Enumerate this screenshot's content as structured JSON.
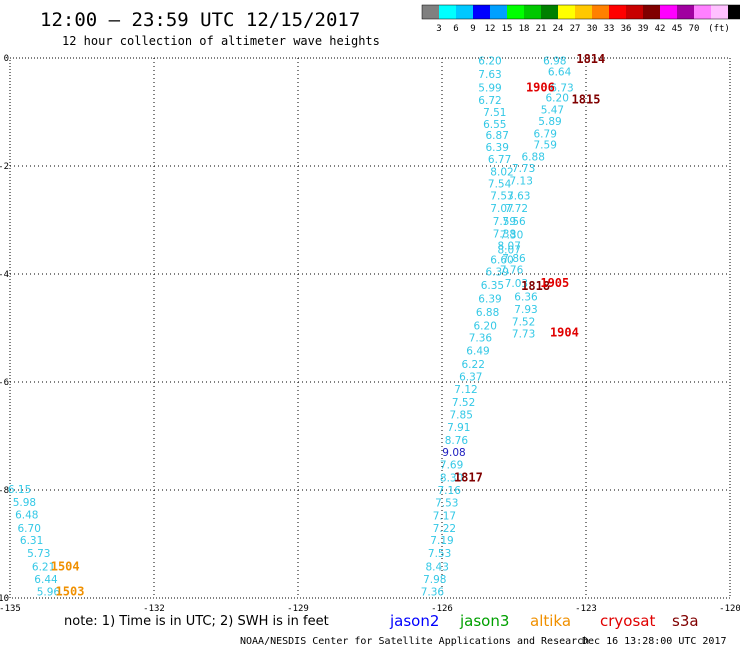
{
  "header": {
    "title": "12:00 – 23:59 UTC 12/15/2017",
    "subtitle": "12 hour collection of altimeter wave heights"
  },
  "legend": {
    "unit": "(ft)",
    "colors": [
      "#808080",
      "#00ffff",
      "#00c8ff",
      "#0000ff",
      "#00a0ff",
      "#00ff00",
      "#00c800",
      "#008000",
      "#ffff00",
      "#ffc800",
      "#ff8000",
      "#ff0000",
      "#c80000",
      "#800000",
      "#ff00ff",
      "#a000a0",
      "#ff80ff",
      "#ffc0ff",
      "#000000"
    ],
    "labels": [
      "3",
      "6",
      "9",
      "12",
      "15",
      "18",
      "21",
      "24",
      "27",
      "30",
      "33",
      "36",
      "39",
      "42",
      "45",
      "70"
    ]
  },
  "axes": {
    "x_ticks": [
      "-135",
      "-132",
      "-129",
      "-126",
      "-123",
      "-120"
    ],
    "y_ticks": [
      "0",
      "-2",
      "-4",
      "-6",
      "-8",
      "-10"
    ]
  },
  "chart_data": {
    "type": "scatter",
    "xlim": [
      -135,
      -120
    ],
    "ylim": [
      -10,
      0
    ],
    "grid": true,
    "wave_heights": [
      {
        "x": -125.0,
        "y": -0.05,
        "v": "6.20",
        "c": "#33c8e6"
      },
      {
        "x": -123.65,
        "y": -0.05,
        "v": "6.98",
        "c": "#33c8e6"
      },
      {
        "x": -123.55,
        "y": -0.25,
        "v": "6.64",
        "c": "#33c8e6"
      },
      {
        "x": -125.0,
        "y": -0.3,
        "v": "7.63",
        "c": "#33c8e6"
      },
      {
        "x": -125.0,
        "y": -0.55,
        "v": "5.99",
        "c": "#33c8e6"
      },
      {
        "x": -123.5,
        "y": -0.55,
        "v": "6.73",
        "c": "#33c8e6"
      },
      {
        "x": -125.0,
        "y": -0.78,
        "v": "6.72",
        "c": "#33c8e6"
      },
      {
        "x": -123.6,
        "y": -0.73,
        "v": "6.20",
        "c": "#33c8e6"
      },
      {
        "x": -124.9,
        "y": -1.0,
        "v": "7.51",
        "c": "#33c8e6"
      },
      {
        "x": -123.7,
        "y": -0.95,
        "v": "5.47",
        "c": "#33c8e6"
      },
      {
        "x": -124.9,
        "y": -1.22,
        "v": "6.55",
        "c": "#33c8e6"
      },
      {
        "x": -123.75,
        "y": -1.17,
        "v": "5.89",
        "c": "#33c8e6"
      },
      {
        "x": -124.85,
        "y": -1.43,
        "v": "6.87",
        "c": "#33c8e6"
      },
      {
        "x": -123.85,
        "y": -1.4,
        "v": "6.79",
        "c": "#33c8e6"
      },
      {
        "x": -124.85,
        "y": -1.65,
        "v": "6.39",
        "c": "#33c8e6"
      },
      {
        "x": -123.85,
        "y": -1.6,
        "v": "7.59",
        "c": "#33c8e6"
      },
      {
        "x": -124.8,
        "y": -1.87,
        "v": "6.77",
        "c": "#33c8e6"
      },
      {
        "x": -124.1,
        "y": -1.82,
        "v": "6.88",
        "c": "#33c8e6"
      },
      {
        "x": -124.75,
        "y": -2.1,
        "v": "8.02",
        "c": "#33c8e6"
      },
      {
        "x": -124.3,
        "y": -2.04,
        "v": "7.73",
        "c": "#33c8e6"
      },
      {
        "x": -124.8,
        "y": -2.32,
        "v": "7.54",
        "c": "#33c8e6"
      },
      {
        "x": -124.35,
        "y": -2.27,
        "v": "7.13",
        "c": "#33c8e6"
      },
      {
        "x": -124.75,
        "y": -2.55,
        "v": "7.53",
        "c": "#33c8e6"
      },
      {
        "x": -124.4,
        "y": -2.55,
        "v": "7.63",
        "c": "#33c8e6"
      },
      {
        "x": -124.75,
        "y": -2.78,
        "v": "7.07",
        "c": "#33c8e6"
      },
      {
        "x": -124.45,
        "y": -2.78,
        "v": "7.72",
        "c": "#33c8e6"
      },
      {
        "x": -124.7,
        "y": -3.02,
        "v": "7.59",
        "c": "#33c8e6"
      },
      {
        "x": -124.5,
        "y": -3.02,
        "v": "7.56",
        "c": "#33c8e6"
      },
      {
        "x": -124.7,
        "y": -3.25,
        "v": "7.38",
        "c": "#33c8e6"
      },
      {
        "x": -124.55,
        "y": -3.27,
        "v": "7.30",
        "c": "#33c8e6"
      },
      {
        "x": -124.6,
        "y": -3.47,
        "v": "8.07",
        "c": "#33c8e6"
      },
      {
        "x": -124.6,
        "y": -3.55,
        "v": "8.07",
        "c": "#33c8e6"
      },
      {
        "x": -124.75,
        "y": -3.73,
        "v": "6.60",
        "c": "#33c8e6"
      },
      {
        "x": -124.5,
        "y": -3.7,
        "v": "7.86",
        "c": "#33c8e6"
      },
      {
        "x": -124.85,
        "y": -3.95,
        "v": "6.39",
        "c": "#33c8e6"
      },
      {
        "x": -124.55,
        "y": -3.92,
        "v": "7.76",
        "c": "#33c8e6"
      },
      {
        "x": -124.95,
        "y": -4.2,
        "v": "6.35",
        "c": "#33c8e6"
      },
      {
        "x": -124.45,
        "y": -4.17,
        "v": "7.03",
        "c": "#33c8e6"
      },
      {
        "x": -125.0,
        "y": -4.45,
        "v": "6.39",
        "c": "#33c8e6"
      },
      {
        "x": -124.25,
        "y": -4.42,
        "v": "6.36",
        "c": "#33c8e6"
      },
      {
        "x": -125.05,
        "y": -4.7,
        "v": "6.88",
        "c": "#33c8e6"
      },
      {
        "x": -124.25,
        "y": -4.65,
        "v": "7.93",
        "c": "#33c8e6"
      },
      {
        "x": -125.1,
        "y": -4.95,
        "v": "6.20",
        "c": "#33c8e6"
      },
      {
        "x": -124.3,
        "y": -4.88,
        "v": "7.52",
        "c": "#33c8e6"
      },
      {
        "x": -125.2,
        "y": -5.18,
        "v": "7.36",
        "c": "#33c8e6"
      },
      {
        "x": -124.3,
        "y": -5.1,
        "v": "7.73",
        "c": "#33c8e6"
      },
      {
        "x": -125.25,
        "y": -5.42,
        "v": "6.49",
        "c": "#33c8e6"
      },
      {
        "x": -125.35,
        "y": -5.67,
        "v": "6.22",
        "c": "#33c8e6"
      },
      {
        "x": -125.4,
        "y": -5.9,
        "v": "6.37",
        "c": "#33c8e6"
      },
      {
        "x": -125.5,
        "y": -6.13,
        "v": "7.12",
        "c": "#33c8e6"
      },
      {
        "x": -125.55,
        "y": -6.37,
        "v": "7.52",
        "c": "#33c8e6"
      },
      {
        "x": -125.6,
        "y": -6.6,
        "v": "7.85",
        "c": "#33c8e6"
      },
      {
        "x": -125.65,
        "y": -6.83,
        "v": "7.91",
        "c": "#33c8e6"
      },
      {
        "x": -125.7,
        "y": -7.07,
        "v": "8.76",
        "c": "#33c8e6"
      },
      {
        "x": -125.75,
        "y": -7.3,
        "v": "9.08",
        "c": "#2020c0"
      },
      {
        "x": -125.8,
        "y": -7.53,
        "v": "7.69",
        "c": "#33c8e6"
      },
      {
        "x": -125.8,
        "y": -7.77,
        "v": "8.30",
        "c": "#33c8e6"
      },
      {
        "x": -125.85,
        "y": -8.0,
        "v": "7.16",
        "c": "#33c8e6"
      },
      {
        "x": -125.9,
        "y": -8.23,
        "v": "7.53",
        "c": "#33c8e6"
      },
      {
        "x": -125.95,
        "y": -8.47,
        "v": "7.17",
        "c": "#33c8e6"
      },
      {
        "x": -125.95,
        "y": -8.7,
        "v": "7.22",
        "c": "#33c8e6"
      },
      {
        "x": -126.0,
        "y": -8.93,
        "v": "7.19",
        "c": "#33c8e6"
      },
      {
        "x": -126.05,
        "y": -9.17,
        "v": "7.53",
        "c": "#33c8e6"
      },
      {
        "x": -126.1,
        "y": -9.42,
        "v": "8.43",
        "c": "#33c8e6"
      },
      {
        "x": -126.15,
        "y": -9.65,
        "v": "7.98",
        "c": "#33c8e6"
      },
      {
        "x": -126.2,
        "y": -9.88,
        "v": "7.36",
        "c": "#33c8e6"
      },
      {
        "x": -134.8,
        "y": -7.98,
        "v": "6.15",
        "c": "#33c8e6"
      },
      {
        "x": -134.7,
        "y": -8.22,
        "v": "5.98",
        "c": "#33c8e6"
      },
      {
        "x": -134.65,
        "y": -8.45,
        "v": "6.48",
        "c": "#33c8e6"
      },
      {
        "x": -134.6,
        "y": -8.7,
        "v": "6.70",
        "c": "#33c8e6"
      },
      {
        "x": -134.55,
        "y": -8.93,
        "v": "6.31",
        "c": "#33c8e6"
      },
      {
        "x": -134.4,
        "y": -9.17,
        "v": "5.73",
        "c": "#33c8e6"
      },
      {
        "x": -134.3,
        "y": -9.42,
        "v": "6.21",
        "c": "#33c8e6"
      },
      {
        "x": -134.25,
        "y": -9.65,
        "v": "6.44",
        "c": "#33c8e6"
      },
      {
        "x": -134.2,
        "y": -9.88,
        "v": "5.96",
        "c": "#33c8e6"
      }
    ],
    "pass_times": [
      {
        "x": -122.9,
        "y": -0.02,
        "t": "1814",
        "c": "#800000"
      },
      {
        "x": -123.95,
        "y": -0.55,
        "t": "1906",
        "c": "#e00000"
      },
      {
        "x": -123.0,
        "y": -0.77,
        "t": "1815",
        "c": "#800000"
      },
      {
        "x": -124.05,
        "y": -4.22,
        "t": "1818",
        "c": "#800000"
      },
      {
        "x": -123.65,
        "y": -4.17,
        "t": "1905",
        "c": "#e00000"
      },
      {
        "x": -123.45,
        "y": -5.08,
        "t": "1904",
        "c": "#e00000"
      },
      {
        "x": -125.45,
        "y": -7.77,
        "t": "1817",
        "c": "#800000"
      },
      {
        "x": -133.85,
        "y": -9.42,
        "t": "1504",
        "c": "#f09000"
      },
      {
        "x": -133.75,
        "y": -9.88,
        "t": "1503",
        "c": "#f09000"
      }
    ]
  },
  "footer": {
    "note": "note: 1) Time is in UTC; 2) SWH is in feet",
    "satellites": [
      {
        "name": "jason2",
        "color": "#0000ff"
      },
      {
        "name": "jason3",
        "color": "#00a000"
      },
      {
        "name": "altika",
        "color": "#f09000"
      },
      {
        "name": "cryosat",
        "color": "#e00000"
      },
      {
        "name": "s3a",
        "color": "#800000"
      }
    ],
    "credit_left": "NOAA/NESDIS Center for Satellite Applications and Research",
    "credit_right": "Dec 16 13:28:00 UTC 2017"
  }
}
